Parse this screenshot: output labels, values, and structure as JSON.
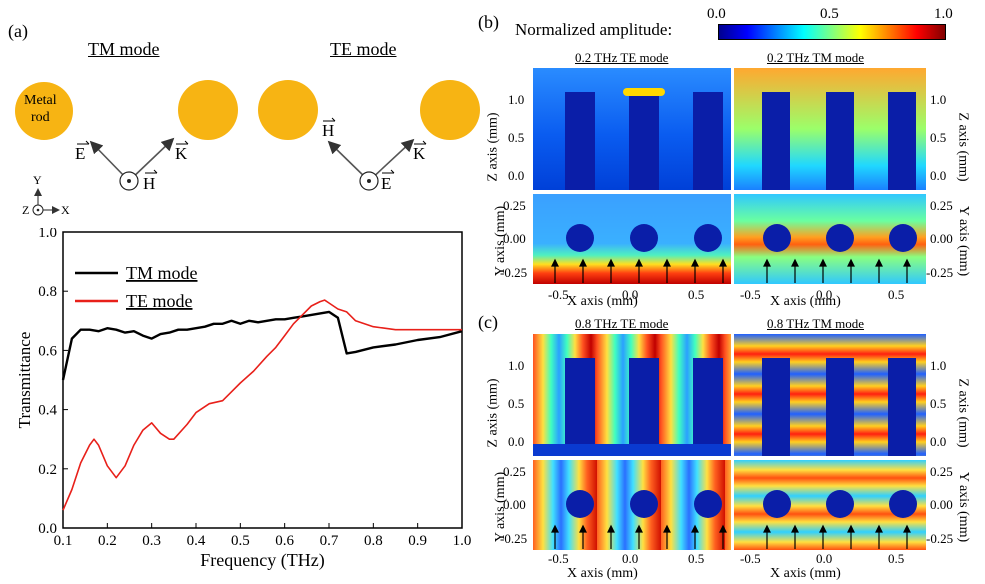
{
  "panel_a": {
    "label": "(a)",
    "tm_title": "TM mode",
    "te_title": "TE mode",
    "rod_label_1": "Metal",
    "rod_label_2": "rod",
    "tm_vec_e": "E",
    "tm_vec_k": "K",
    "tm_vec_h": "H",
    "te_vec_h": "H",
    "te_vec_k": "K",
    "te_vec_e": "E",
    "axis_y": "Y",
    "axis_x": "X",
    "axis_z": "Z",
    "colors": {
      "rod": "#f7b413",
      "tm_line": "#000000",
      "te_line": "#e8201a"
    }
  },
  "panel_b": {
    "label": "(b)",
    "colorbar_label": "Normalized amplitude:",
    "colorbar_ticks": [
      "0.0",
      "0.5",
      "1.0"
    ],
    "te_title": "0.2 THz TE mode",
    "tm_title": "0.2 THz TM mode"
  },
  "panel_c": {
    "label": "(c)",
    "te_title": "0.8 THz TE mode",
    "tm_title": "0.8 THz TM mode"
  },
  "field_axes": {
    "z_label": "Z axis (mm)",
    "y_label": "Y axis (mm)",
    "x_label": "X axis (mm)",
    "z_ticks": [
      "1.0",
      "0.5",
      "0.0"
    ],
    "y_ticks": [
      "0.25",
      "0.00",
      "-0.25"
    ],
    "x_ticks": [
      "-0.5",
      "0.0",
      "0.5"
    ]
  },
  "chart_data": {
    "type": "line",
    "xlabel": "Frequency (THz)",
    "ylabel": "Transmittance",
    "xlim": [
      0.1,
      1.0
    ],
    "ylim": [
      0.0,
      1.0
    ],
    "xticks": [
      "0.1",
      "0.2",
      "0.3",
      "0.4",
      "0.5",
      "0.6",
      "0.7",
      "0.8",
      "0.9",
      "1.0"
    ],
    "yticks": [
      "0.0",
      "0.2",
      "0.4",
      "0.6",
      "0.8",
      "1.0"
    ],
    "legend_position": "top-left",
    "series": [
      {
        "name": "TM mode",
        "color": "#000000",
        "x": [
          0.1,
          0.12,
          0.14,
          0.16,
          0.18,
          0.2,
          0.22,
          0.24,
          0.26,
          0.28,
          0.3,
          0.32,
          0.34,
          0.36,
          0.38,
          0.4,
          0.42,
          0.44,
          0.46,
          0.48,
          0.5,
          0.52,
          0.54,
          0.56,
          0.58,
          0.6,
          0.62,
          0.64,
          0.66,
          0.68,
          0.7,
          0.72,
          0.74,
          0.76,
          0.8,
          0.85,
          0.9,
          0.95,
          1.0
        ],
        "y": [
          0.5,
          0.64,
          0.67,
          0.67,
          0.665,
          0.675,
          0.67,
          0.66,
          0.665,
          0.65,
          0.64,
          0.655,
          0.66,
          0.67,
          0.67,
          0.675,
          0.68,
          0.69,
          0.69,
          0.7,
          0.69,
          0.7,
          0.695,
          0.7,
          0.705,
          0.705,
          0.71,
          0.715,
          0.72,
          0.725,
          0.73,
          0.71,
          0.59,
          0.595,
          0.61,
          0.62,
          0.635,
          0.645,
          0.665
        ]
      },
      {
        "name": "TE mode",
        "color": "#e8201a",
        "x": [
          0.1,
          0.12,
          0.14,
          0.16,
          0.17,
          0.18,
          0.2,
          0.22,
          0.24,
          0.26,
          0.28,
          0.3,
          0.32,
          0.34,
          0.35,
          0.38,
          0.4,
          0.43,
          0.46,
          0.48,
          0.5,
          0.53,
          0.56,
          0.58,
          0.6,
          0.62,
          0.64,
          0.66,
          0.68,
          0.69,
          0.7,
          0.72,
          0.74,
          0.76,
          0.8,
          0.85,
          0.9,
          1.0
        ],
        "y": [
          0.06,
          0.13,
          0.22,
          0.28,
          0.3,
          0.28,
          0.21,
          0.17,
          0.21,
          0.28,
          0.33,
          0.355,
          0.32,
          0.3,
          0.3,
          0.35,
          0.39,
          0.42,
          0.43,
          0.46,
          0.49,
          0.53,
          0.58,
          0.61,
          0.65,
          0.69,
          0.72,
          0.75,
          0.765,
          0.77,
          0.76,
          0.74,
          0.73,
          0.7,
          0.68,
          0.67,
          0.67,
          0.67
        ]
      }
    ]
  }
}
